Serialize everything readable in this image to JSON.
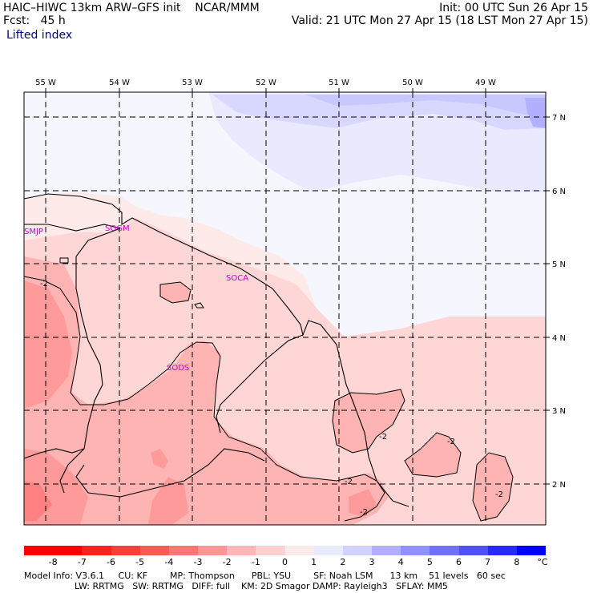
{
  "header": {
    "line1_left": "HAIC–HIWC 13km ARW–GFS init    NCAR/MMM",
    "line1_right": "Init: 00 UTC Sun 26 Apr 15",
    "line2_left": "Fcst:   45 h",
    "line2_right": "Valid: 21 UTC Mon 27 Apr 15 (18 LST Mon 27 Apr 15)",
    "field": "Lifted index"
  },
  "map": {
    "lon_labels": [
      "55 W",
      "54 W",
      "53 W",
      "52 W",
      "51 W",
      "50 W",
      "49 W"
    ],
    "lat_labels": [
      "7 N",
      "6 N",
      "5 N",
      "4 N",
      "3 N",
      "2 N"
    ],
    "stations": [
      "SMJP",
      "SOGM",
      "SOCA",
      "SODS"
    ],
    "contour_label": "-2"
  },
  "colorbar": {
    "labels": [
      "-8",
      "-7",
      "-6",
      "-5",
      "-4",
      "-3",
      "-2",
      "-1",
      "0",
      "1",
      "2",
      "3",
      "4",
      "5",
      "6",
      "7",
      "8"
    ],
    "unit": "°C",
    "colors": [
      "#ff0000",
      "#ff2020",
      "#ff3c3c",
      "#ff5858",
      "#ff7474",
      "#ff9696",
      "#ffb6b6",
      "#ffd2d2",
      "#ffeaea",
      "#eaeaff",
      "#d2d2ff",
      "#b0b0ff",
      "#9090ff",
      "#7070ff",
      "#5050ff",
      "#2828ff",
      "#0000ff"
    ]
  },
  "footer": {
    "line1": "Model Info: V3.6.1     CU: KF        MP: Thompson      PBL: YSU        SF: Noah LSM      13 km    51 levels   60 sec",
    "line2": "                  LW: RRTMG   SW: RRTMG   DIFF: full    KM: 2D Smagor DAMP: Rayleigh3   SFLAY: MM5"
  }
}
